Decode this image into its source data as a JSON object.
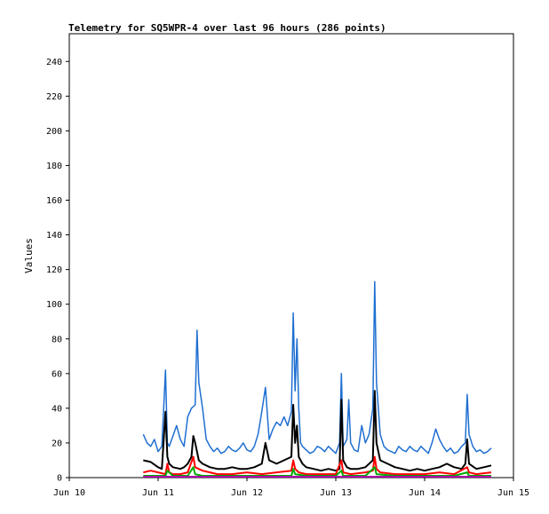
{
  "chart_data": {
    "type": "line",
    "title": "Telemetry for SQ5WPR-4 over last 96 hours (286 points)",
    "xlabel": "",
    "ylabel": "Values",
    "x_tick_labels": [
      "Jun 10",
      "Jun 11",
      "Jun 12",
      "Jun 13",
      "Jun 14",
      "Jun 15"
    ],
    "x_ticks": [
      0,
      24,
      48,
      72,
      96,
      120
    ],
    "xlim": [
      0,
      120
    ],
    "y_ticks": [
      0,
      20,
      40,
      60,
      80,
      100,
      120,
      140,
      160,
      180,
      200,
      220,
      240
    ],
    "ylim": [
      0,
      256
    ],
    "grid": false,
    "legend": "none",
    "series": [
      {
        "color": "#1f6fd1",
        "x": [
          20,
          21,
          22,
          23,
          24,
          25,
          26,
          26.5,
          27,
          28,
          29,
          30,
          31,
          32,
          33,
          34,
          34.5,
          35,
          36,
          37,
          38,
          39,
          40,
          41,
          42,
          43,
          44,
          45,
          46,
          47,
          48,
          49,
          50,
          51,
          52,
          53,
          54,
          55,
          56,
          57,
          58,
          59,
          60,
          60.5,
          61,
          61.5,
          62,
          62.5,
          63,
          64,
          65,
          66,
          67,
          68,
          69,
          70,
          71,
          72,
          73,
          73.5,
          74,
          75,
          75.5,
          76,
          77,
          78,
          79,
          80,
          81,
          82,
          82.5,
          83,
          84,
          85,
          86,
          87,
          88,
          89,
          90,
          91,
          92,
          93,
          94,
          95,
          96,
          97,
          98,
          99,
          100,
          101,
          102,
          103,
          104,
          105,
          106,
          107,
          107.5,
          108,
          109,
          110,
          111,
          112,
          113,
          114
        ],
        "y": [
          25,
          20,
          18,
          22,
          15,
          18,
          62,
          20,
          18,
          24,
          30,
          22,
          18,
          35,
          40,
          42,
          85,
          55,
          40,
          22,
          18,
          15,
          17,
          14,
          15,
          18,
          16,
          15,
          17,
          20,
          16,
          15,
          18,
          25,
          38,
          52,
          22,
          28,
          32,
          30,
          35,
          30,
          38,
          95,
          50,
          80,
          40,
          20,
          18,
          16,
          14,
          15,
          18,
          17,
          15,
          18,
          16,
          14,
          20,
          60,
          18,
          22,
          45,
          20,
          16,
          15,
          30,
          20,
          25,
          40,
          113,
          55,
          25,
          18,
          16,
          15,
          14,
          18,
          16,
          15,
          18,
          16,
          15,
          18,
          16,
          14,
          20,
          28,
          22,
          18,
          15,
          17,
          14,
          15,
          18,
          20,
          48,
          25,
          18,
          15,
          16,
          14,
          15,
          17
        ],
        "values_note": ""
      },
      {
        "color": "#000000",
        "x": [
          20,
          22,
          24,
          25,
          26,
          26.5,
          27,
          28,
          30,
          31,
          32,
          33,
          33.5,
          34,
          35,
          36,
          38,
          40,
          42,
          44,
          46,
          48,
          50,
          52,
          53,
          54,
          56,
          58,
          60,
          60.5,
          61,
          61.5,
          62,
          63,
          64,
          66,
          68,
          70,
          72,
          73,
          73.5,
          74,
          75,
          76,
          78,
          80,
          81,
          82,
          82.5,
          83,
          84,
          86,
          88,
          90,
          92,
          94,
          96,
          98,
          100,
          102,
          104,
          106,
          107,
          107.5,
          108,
          110,
          112,
          114
        ],
        "y": [
          10,
          9,
          6,
          5,
          38,
          12,
          8,
          6,
          5,
          6,
          8,
          12,
          24,
          20,
          10,
          8,
          6,
          5,
          5,
          6,
          5,
          5,
          6,
          8,
          20,
          10,
          8,
          10,
          12,
          42,
          20,
          30,
          12,
          8,
          6,
          5,
          4,
          5,
          4,
          5,
          45,
          10,
          6,
          5,
          5,
          6,
          8,
          10,
          50,
          20,
          10,
          8,
          6,
          5,
          4,
          5,
          4,
          5,
          6,
          8,
          6,
          5,
          8,
          22,
          8,
          5,
          6,
          7
        ]
      },
      {
        "color": "#ff0000",
        "x": [
          20,
          22,
          24,
          26,
          26.5,
          27,
          28,
          30,
          32,
          33.5,
          34,
          36,
          38,
          40,
          44,
          48,
          52,
          56,
          60,
          60.5,
          61,
          62,
          64,
          68,
          72,
          73.5,
          74,
          76,
          80,
          82,
          82.5,
          83,
          84,
          88,
          92,
          96,
          100,
          104,
          107.5,
          108,
          110,
          114
        ],
        "y": [
          3,
          4,
          3,
          2,
          8,
          3,
          2,
          2,
          3,
          12,
          6,
          4,
          3,
          2,
          2,
          3,
          2,
          3,
          4,
          10,
          5,
          3,
          2,
          2,
          2,
          10,
          3,
          2,
          3,
          4,
          12,
          5,
          3,
          2,
          2,
          2,
          3,
          2,
          6,
          3,
          2,
          3
        ]
      },
      {
        "color": "#00aa00",
        "x": [
          20,
          24,
          26,
          26.5,
          28,
          32,
          33.5,
          34,
          36,
          40,
          48,
          56,
          60,
          60.5,
          61,
          64,
          72,
          73.5,
          74,
          80,
          82.5,
          83,
          88,
          96,
          104,
          107.5,
          108,
          114
        ],
        "y": [
          1,
          1,
          1,
          4,
          1,
          1,
          6,
          2,
          1,
          1,
          1,
          1,
          1,
          5,
          2,
          1,
          1,
          4,
          1,
          1,
          6,
          2,
          1,
          1,
          1,
          3,
          1,
          1
        ]
      },
      {
        "color": "#aa00aa",
        "x": [
          20,
          40,
          60,
          80,
          100,
          114
        ],
        "y": [
          0.5,
          0.5,
          0.5,
          0.5,
          0.5,
          0.5
        ]
      }
    ]
  }
}
